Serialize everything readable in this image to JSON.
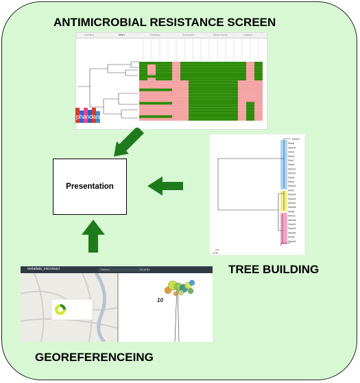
{
  "headings": {
    "amr": "ANTIMICROBIAL RESISTANCE SCREEN",
    "tree": "TREE BUILDING",
    "geo": "GEOREFERENCEING"
  },
  "center_box": {
    "label": "Presentation"
  },
  "amr_screenshot": {
    "tabs": [
      "Landing",
      "Main",
      "Settings",
      "Examples",
      "About (unit)",
      "Citation"
    ],
    "logo_text": "phandango",
    "heatmap_colors": {
      "present": "#2e8b0a",
      "absent": "#f4a3a3"
    }
  },
  "tree_screenshot": {
    "tips": [
      "Sim17",
      "Sim6",
      "Sim15",
      "Sim3",
      "Sim2",
      "Sim7",
      "Sim9",
      "Sim12",
      "Sim10",
      "Sim5",
      "Sim4",
      "Sim14",
      "Sim1",
      "Sim24",
      "Sim23",
      "Sim22",
      "Sim18",
      "Sim8",
      "Sim11",
      "Sim16",
      "Sim21",
      "Sim13",
      "Sim20",
      "Sim8",
      "Sim19"
    ],
    "scale_label": "0.05",
    "clade_colors": [
      "#a9d4f5",
      "#f4ef8a",
      "#f4a6c6"
    ]
  },
  "map_screenshot": {
    "title": "metadata_microreact",
    "search_placeholder": "Search",
    "count": "24 of 24",
    "tree_tip_label": "10"
  },
  "colors": {
    "panel_bg": "#d8f8d4",
    "arrow_green": "#1f7a1c"
  },
  "icons": {
    "arrow_amr": "arrow-down-left-icon",
    "arrow_tree": "arrow-left-icon",
    "arrow_geo": "arrow-up-icon"
  }
}
